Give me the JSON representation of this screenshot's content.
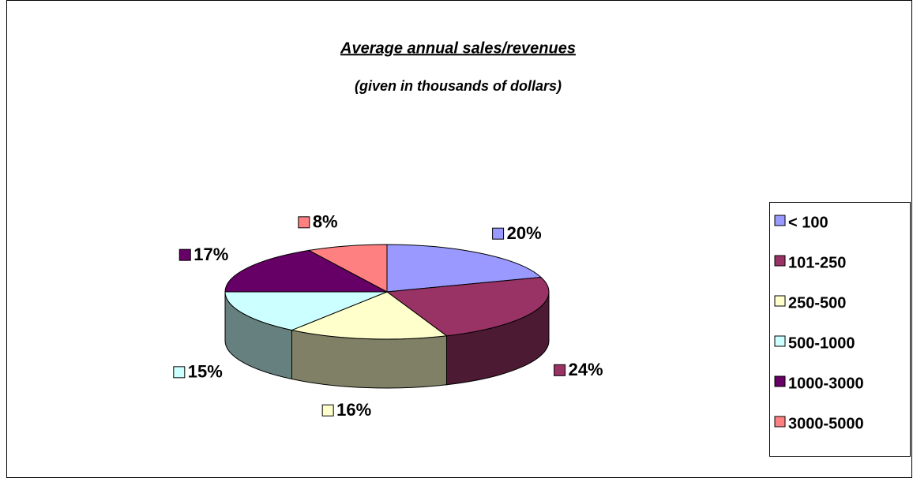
{
  "chart_data": {
    "type": "pie",
    "title": "Average annual sales/revenues",
    "subtitle": "(given in thousands of dollars)",
    "categories": [
      "< 100",
      "101-250",
      "250-500",
      "500-1000",
      "1000-3000",
      "3000-5000"
    ],
    "values": [
      20,
      24,
      16,
      15,
      17,
      8
    ],
    "value_labels": [
      "20%",
      "24%",
      "16%",
      "15%",
      "17%",
      "8%"
    ],
    "colors": [
      "#9999ff",
      "#993366",
      "#ffffcc",
      "#ccffff",
      "#660066",
      "#ff8080"
    ],
    "legend": "right"
  }
}
